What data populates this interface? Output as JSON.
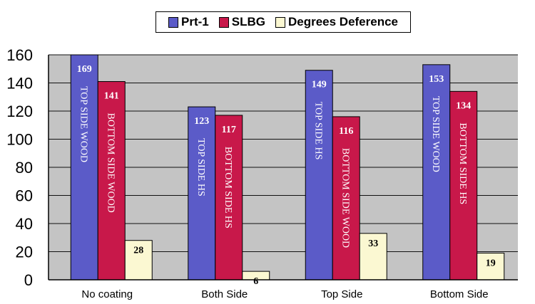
{
  "legend": [
    {
      "name": "Prt-1",
      "color": "#5b5bc8"
    },
    {
      "name": "SLBG",
      "color": "#c8184a"
    },
    {
      "name": "Degrees Deference",
      "color": "#fbf8d2"
    }
  ],
  "chart_data": {
    "type": "bar",
    "title": "",
    "xlabel": "",
    "ylabel": "",
    "ylim": [
      0,
      160
    ],
    "yticks": [
      0,
      20,
      40,
      60,
      80,
      100,
      120,
      140,
      160
    ],
    "grid": true,
    "legend_position": "top",
    "categories": [
      "No coating",
      "Both Side",
      "Top Side",
      "Bottom Side"
    ],
    "series": [
      {
        "name": "Prt-1",
        "values": [
          169,
          123,
          149,
          153
        ],
        "bar_labels": [
          "TOP SIDE WOOD",
          "TOP SIDE HS",
          "TOP SIDE HS",
          "TOP SIDE WOOD"
        ]
      },
      {
        "name": "SLBG",
        "values": [
          141,
          117,
          116,
          134
        ],
        "bar_labels": [
          "BOTTOM SIDE WOOD",
          "BOTTOM SIDE HS",
          "BOTTOM SIDE WOOD",
          "BOTTOM SIDE HS"
        ]
      },
      {
        "name": "Degrees Deference",
        "values": [
          28,
          6,
          33,
          19
        ]
      }
    ]
  }
}
